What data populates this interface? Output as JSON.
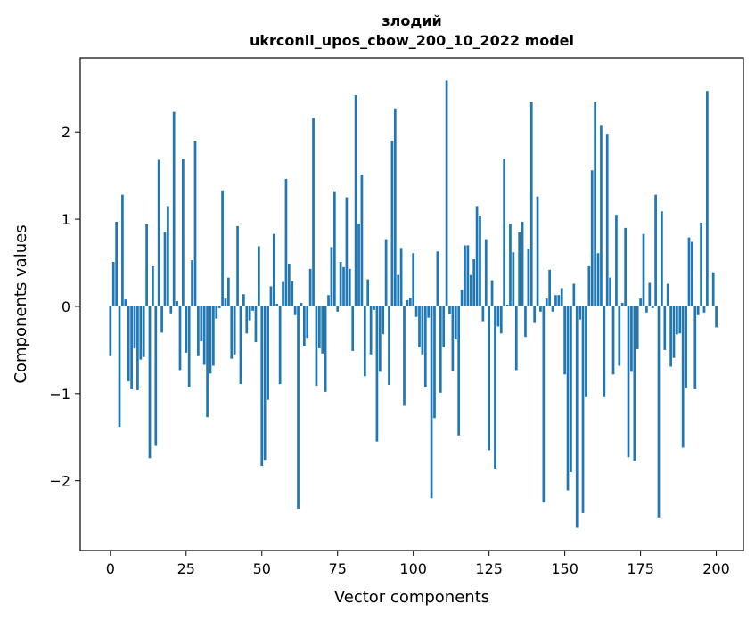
{
  "chart_data": {
    "type": "bar",
    "title": "злодий",
    "subtitle": "ukrconll_upos_cbow_200_10_2022 model",
    "xlabel": "Vector components",
    "ylabel": "Components values",
    "xlim": [
      -9.95,
      208.95
    ],
    "ylim": [
      -2.8,
      2.85
    ],
    "xticks": [
      0,
      25,
      50,
      75,
      100,
      125,
      150,
      175,
      200
    ],
    "yticks": [
      -2,
      -1,
      0,
      1,
      2
    ],
    "ytick_labels": [
      "−2",
      "−1",
      "0",
      "1",
      "2"
    ],
    "color": "#1f77b4",
    "values": [
      -0.57,
      0.51,
      0.97,
      -1.38,
      1.28,
      0.08,
      -0.86,
      -0.95,
      -0.48,
      -0.96,
      -0.61,
      -0.58,
      0.94,
      -1.74,
      0.46,
      -1.6,
      1.68,
      -0.3,
      0.85,
      1.15,
      -0.08,
      2.23,
      0.06,
      -0.73,
      1.69,
      -0.53,
      -0.93,
      0.53,
      1.9,
      -0.57,
      -0.4,
      -0.67,
      -1.27,
      -0.77,
      -0.68,
      -0.14,
      -0.02,
      1.33,
      0.09,
      0.33,
      -0.6,
      -0.55,
      0.92,
      -0.89,
      0.14,
      -0.31,
      -0.16,
      -0.05,
      -0.41,
      0.69,
      -1.83,
      -1.76,
      -1.07,
      0.23,
      0.83,
      0.03,
      -0.89,
      0.28,
      1.46,
      0.49,
      0.29,
      -0.1,
      -2.32,
      0.04,
      -0.45,
      -0.36,
      0.43,
      2.16,
      -0.91,
      -0.48,
      -0.54,
      -0.98,
      0.13,
      0.68,
      1.32,
      -0.06,
      0.51,
      0.45,
      1.25,
      0.43,
      -0.51,
      2.42,
      0.95,
      1.51,
      -0.8,
      0.31,
      -0.55,
      -0.04,
      -1.55,
      -0.75,
      -0.32,
      0.77,
      -0.9,
      1.9,
      2.27,
      0.36,
      0.67,
      -1.14,
      0.07,
      0.1,
      0.61,
      -0.12,
      -0.47,
      -0.55,
      -0.93,
      -0.13,
      -2.2,
      -1.28,
      0.63,
      -0.99,
      -0.47,
      2.59,
      -0.09,
      -0.74,
      -0.38,
      -1.48,
      0.19,
      0.7,
      0.7,
      0.36,
      0.54,
      1.15,
      1.04,
      -0.17,
      0.77,
      -1.65,
      0.3,
      -1.86,
      -0.23,
      -0.31,
      1.69,
      0.02,
      0.95,
      0.62,
      -0.73,
      0.85,
      0.97,
      -0.35,
      0.66,
      2.34,
      -0.19,
      1.26,
      -0.06,
      -2.25,
      0.09,
      0.42,
      -0.06,
      0.13,
      0.13,
      0.21,
      -0.78,
      -2.11,
      -1.9,
      0.26,
      -2.54,
      -0.15,
      -2.37,
      -1.04,
      0.46,
      1.56,
      2.34,
      0.61,
      2.08,
      -1.04,
      1.98,
      0.33,
      -0.78,
      1.05,
      -0.68,
      0.04,
      0.9,
      -1.73,
      -0.75,
      -1.77,
      -0.49,
      0.09,
      0.83,
      -0.07,
      0.27,
      -0.02,
      1.28,
      -2.42,
      1.09,
      -0.5,
      0.26,
      -0.69,
      -0.59,
      -0.32,
      -0.31,
      -1.62,
      -0.94,
      0.79,
      0.74,
      -0.95,
      -0.1,
      0.96,
      -0.07,
      2.47,
      0.0,
      0.39,
      -0.24
    ]
  }
}
